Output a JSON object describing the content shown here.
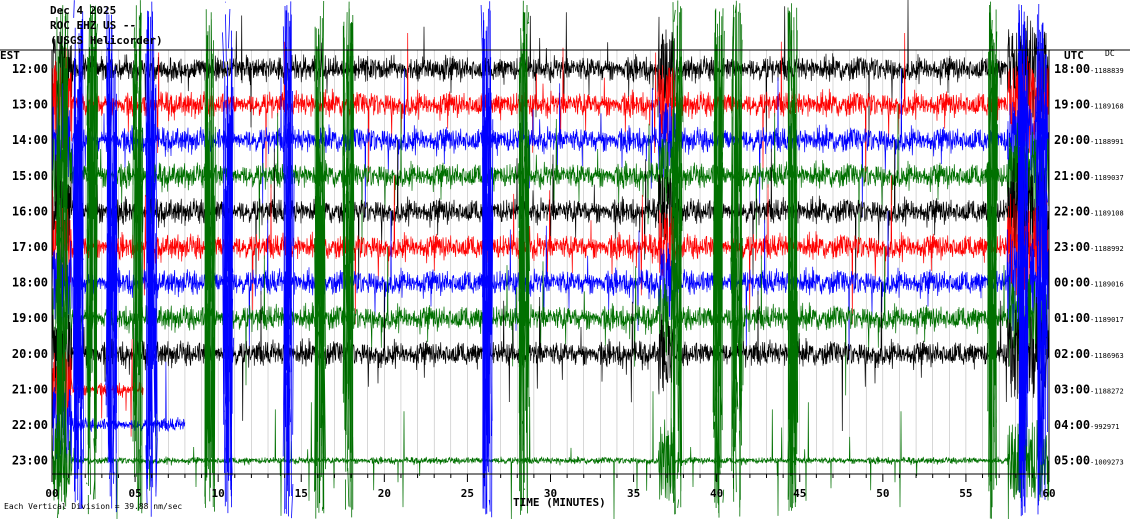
{
  "chart_data": {
    "type": "line",
    "header": {
      "date": "Dec 4 2025",
      "station": "ROC EHZ US --",
      "line3": "(USGS Helicorder)"
    },
    "left_axis_label": "EST",
    "right_axis_label": "UTC",
    "right_dc_label": "DC",
    "xlabel": "TIME (MINUTES)",
    "xlim": [
      0,
      60
    ],
    "x_ticks": [
      "00",
      "05",
      "10",
      "15",
      "20",
      "25",
      "30",
      "35",
      "40",
      "45",
      "50",
      "55",
      "60"
    ],
    "rows": [
      {
        "est": "12:00",
        "utc": "18:00",
        "dc": "-1188839",
        "color": "#000000"
      },
      {
        "est": "13:00",
        "utc": "19:00",
        "dc": "-1189168",
        "color": "#ff0000"
      },
      {
        "est": "14:00",
        "utc": "20:00",
        "dc": "-1188991",
        "color": "#0000ff"
      },
      {
        "est": "15:00",
        "utc": "21:00",
        "dc": "-1189037",
        "color": "#007000"
      },
      {
        "est": "16:00",
        "utc": "22:00",
        "dc": "-1189108",
        "color": "#000000"
      },
      {
        "est": "17:00",
        "utc": "23:00",
        "dc": "-1188992",
        "color": "#ff0000"
      },
      {
        "est": "18:00",
        "utc": "00:00",
        "dc": "-1189016",
        "color": "#0000ff"
      },
      {
        "est": "19:00",
        "utc": "01:00",
        "dc": "-1189017",
        "color": "#007000"
      },
      {
        "est": "20:00",
        "utc": "02:00",
        "dc": "-1186963",
        "color": "#000000"
      },
      {
        "est": "21:00",
        "utc": "03:00",
        "dc": "-1188272",
        "color": "#ff0000"
      },
      {
        "est": "22:00",
        "utc": "04:00",
        "dc": "-992971",
        "color": "#0000ff"
      },
      {
        "est": "23:00",
        "utc": "05:00",
        "dc": "-1009273",
        "color": "#007000"
      }
    ],
    "footer_note": "Each Vertical Division = 39.88 nm/sec",
    "grid": true
  }
}
